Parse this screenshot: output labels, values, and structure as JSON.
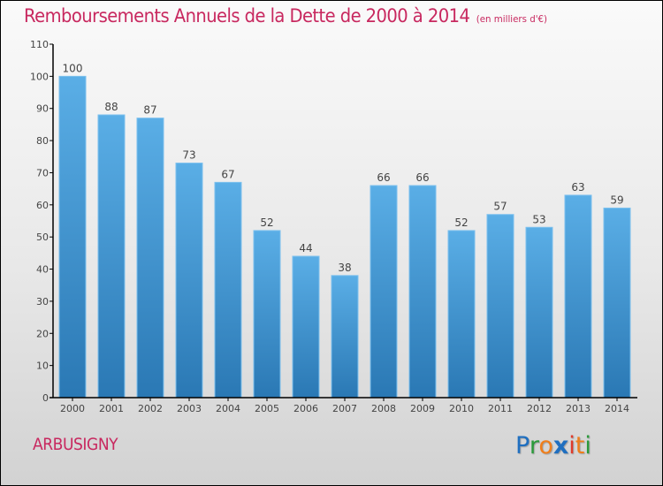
{
  "chart_data": {
    "type": "bar",
    "title": "Remboursements Annuels de la Dette de 2000 à 2014",
    "unit_label": "(en milliers d'€)",
    "xlabel": "",
    "ylabel": "",
    "categories": [
      "2000",
      "2001",
      "2002",
      "2003",
      "2004",
      "2005",
      "2006",
      "2007",
      "2008",
      "2009",
      "2010",
      "2011",
      "2012",
      "2013",
      "2014"
    ],
    "values": [
      100,
      88,
      87,
      73,
      67,
      52,
      44,
      38,
      66,
      66,
      52,
      57,
      53,
      63,
      59
    ],
    "ylim": [
      0,
      110
    ],
    "yticks": [
      0,
      10,
      20,
      30,
      40,
      50,
      60,
      70,
      80,
      90,
      100,
      110
    ],
    "grid": false,
    "legend": "none",
    "bar_color_top": "#5aaee6",
    "bar_color_bottom": "#2a78b4"
  },
  "footer": {
    "city": "ARBUSIGNY",
    "logo_letters": [
      {
        "ch": "P",
        "color": "#1f6fc0"
      },
      {
        "ch": "r",
        "color": "#2a9a3a"
      },
      {
        "ch": "o",
        "color": "#f07e1a"
      },
      {
        "ch": "x",
        "color": "#1f6fc0"
      },
      {
        "ch": "i",
        "color": "#e03a2a"
      },
      {
        "ch": "t",
        "color": "#f07e1a"
      },
      {
        "ch": "i",
        "color": "#2a9a3a"
      }
    ]
  },
  "colors": {
    "title": "#c8285f",
    "axis": "#000000",
    "label_text": "#444444"
  }
}
